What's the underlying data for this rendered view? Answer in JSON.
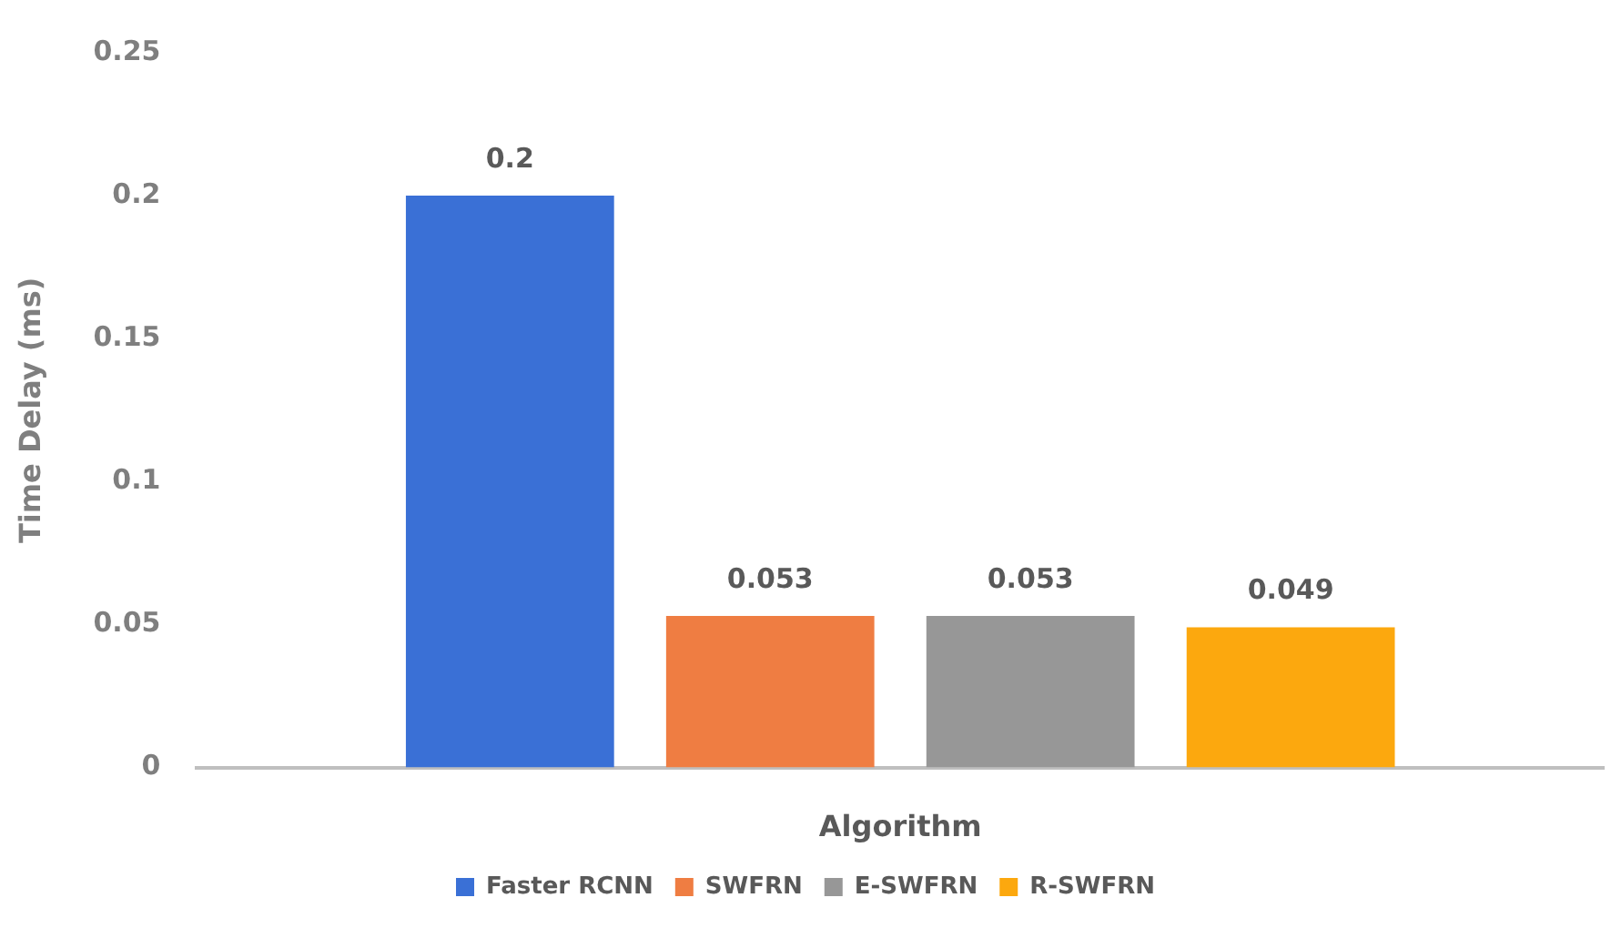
{
  "chart_data": {
    "type": "bar",
    "xlabel": "Algorithm",
    "ylabel": "Time Delay (ms)",
    "categories": [
      null
    ],
    "series": [
      {
        "name": "Faster RCNN",
        "color": "#3a70d6",
        "values": [
          0.2
        ]
      },
      {
        "name": "SWFRN",
        "color": "#ef7d42",
        "values": [
          0.053
        ]
      },
      {
        "name": "E-SWFRN",
        "color": "#979797",
        "values": [
          0.053
        ]
      },
      {
        "name": "R-SWFRN",
        "color": "#fca80e",
        "values": [
          0.049
        ]
      }
    ],
    "ylim": [
      0,
      0.25
    ],
    "yticks": [
      0,
      0.05,
      0.1,
      0.15,
      0.2,
      0.25
    ],
    "grid": false,
    "legend": "bottom",
    "data_labels": true
  }
}
